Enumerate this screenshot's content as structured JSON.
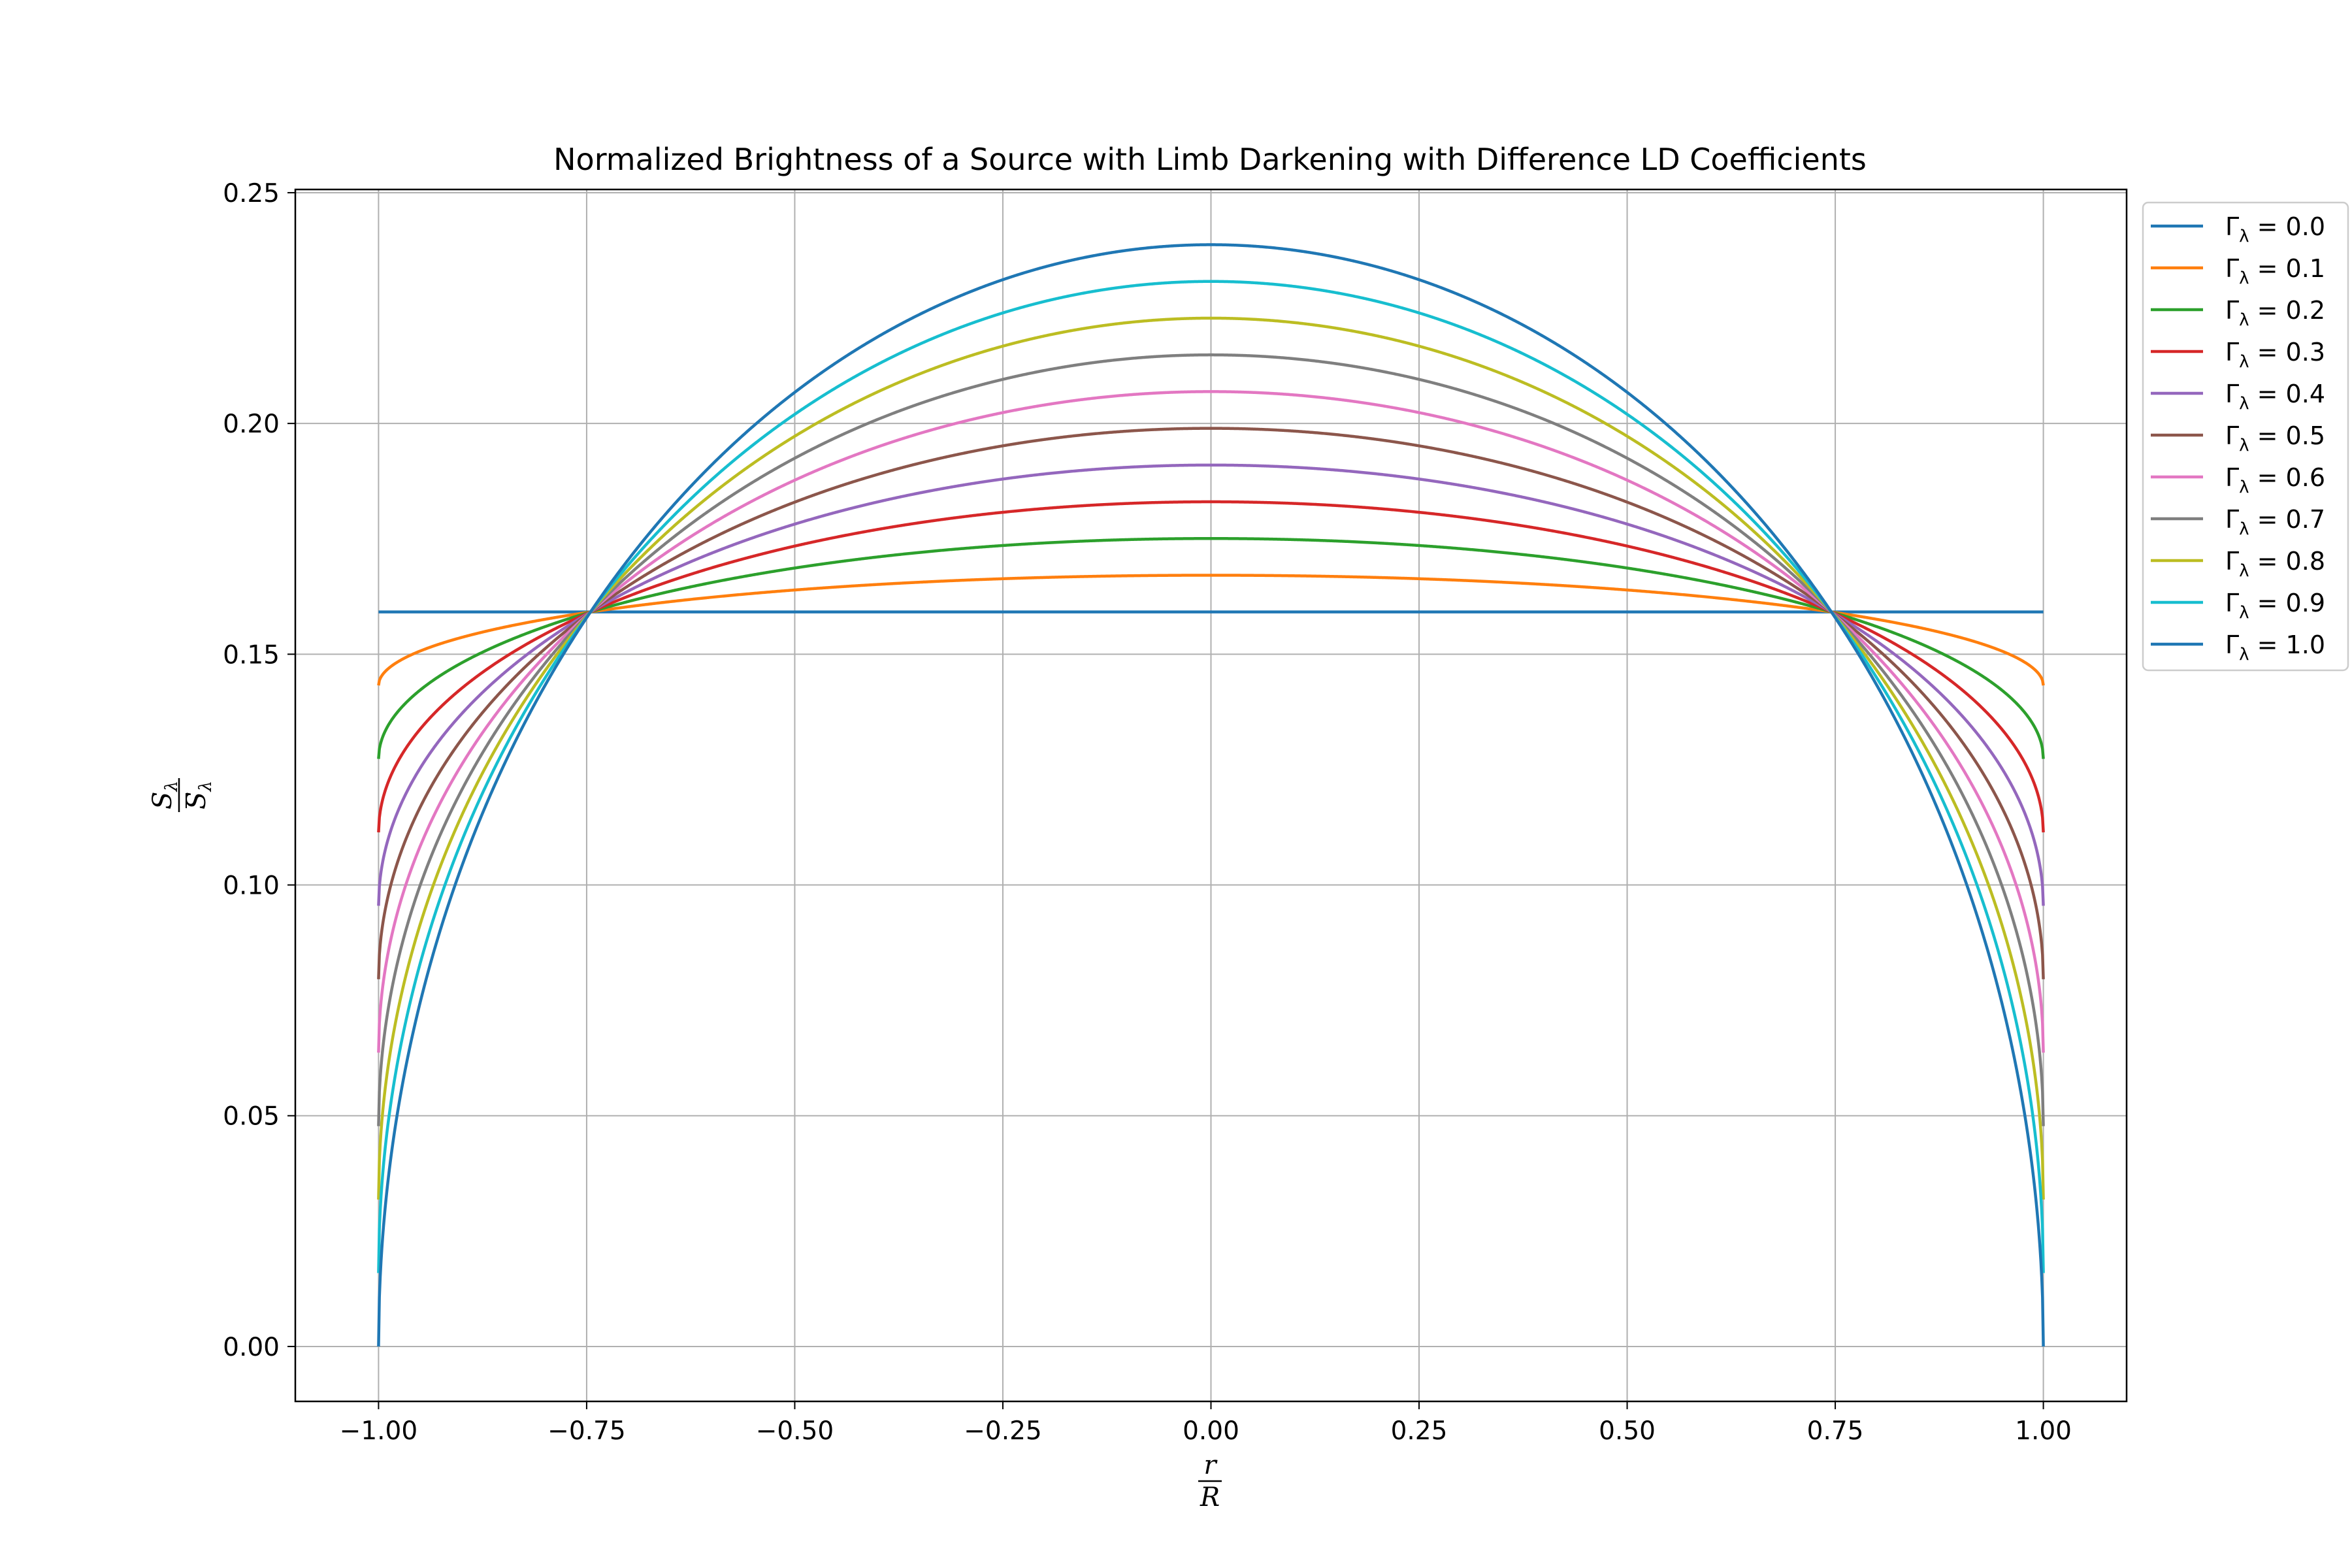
{
  "chart_data": {
    "type": "line",
    "title": "Normalized Brightness of a Source with Limb Darkening with Difference LD Coefficients",
    "xlabel": {
      "numerator": "r",
      "denominator": "R"
    },
    "ylabel": {
      "numerator": "S",
      "numerator_sub": "λ",
      "denominator": "S",
      "denominator_sub": "λ",
      "denominator_overbar": true
    },
    "xlim": [
      -1.1,
      1.1
    ],
    "ylim": [
      -0.0119,
      0.2507
    ],
    "x_ticks": [
      -1.0,
      -0.75,
      -0.5,
      -0.25,
      0.0,
      0.25,
      0.5,
      0.75,
      1.0
    ],
    "x_tick_labels": [
      "−1.00",
      "−0.75",
      "−0.50",
      "−0.25",
      "0.00",
      "0.25",
      "0.50",
      "0.75",
      "1.00"
    ],
    "y_ticks": [
      0.0,
      0.05,
      0.1,
      0.15,
      0.2,
      0.25
    ],
    "y_tick_labels": [
      "0.00",
      "0.05",
      "0.10",
      "0.15",
      "0.20",
      "0.25"
    ],
    "grid": true,
    "legend_position": "outside-right-top",
    "x_range": [
      -1.0,
      1.0
    ],
    "model": "S(x) = (1 - Γ·(1 - 1.5·sqrt(1 - x²))) / (2π)",
    "series": [
      {
        "gamma": 0.0,
        "name_prefix": "Γ",
        "name_sub": "λ",
        "name_value": " = 0.0",
        "color": "#1f77b4",
        "center_value": 0.1592,
        "edge_value": 0.1592
      },
      {
        "gamma": 0.1,
        "name_prefix": "Γ",
        "name_sub": "λ",
        "name_value": " = 0.1",
        "color": "#ff7f0e",
        "center_value": 0.1671,
        "edge_value": 0.1432
      },
      {
        "gamma": 0.2,
        "name_prefix": "Γ",
        "name_sub": "λ",
        "name_value": " = 0.2",
        "color": "#2ca02c",
        "center_value": 0.1751,
        "edge_value": 0.1273
      },
      {
        "gamma": 0.3,
        "name_prefix": "Γ",
        "name_sub": "λ",
        "name_value": " = 0.3",
        "color": "#d62728",
        "center_value": 0.183,
        "edge_value": 0.1114
      },
      {
        "gamma": 0.4,
        "name_prefix": "Γ",
        "name_sub": "λ",
        "name_value": " = 0.4",
        "color": "#9467bd",
        "center_value": 0.191,
        "edge_value": 0.0955
      },
      {
        "gamma": 0.5,
        "name_prefix": "Γ",
        "name_sub": "λ",
        "name_value": " = 0.5",
        "color": "#8c564b",
        "center_value": 0.1989,
        "edge_value": 0.0796
      },
      {
        "gamma": 0.6,
        "name_prefix": "Γ",
        "name_sub": "λ",
        "name_value": " = 0.6",
        "color": "#e377c2",
        "center_value": 0.2069,
        "edge_value": 0.0637
      },
      {
        "gamma": 0.7,
        "name_prefix": "Γ",
        "name_sub": "λ",
        "name_value": " = 0.7",
        "color": "#7f7f7f",
        "center_value": 0.2149,
        "edge_value": 0.0477
      },
      {
        "gamma": 0.8,
        "name_prefix": "Γ",
        "name_sub": "λ",
        "name_value": " = 0.8",
        "color": "#bcbd22",
        "center_value": 0.2228,
        "edge_value": 0.0318
      },
      {
        "gamma": 0.9,
        "name_prefix": "Γ",
        "name_sub": "λ",
        "name_value": " = 0.9",
        "color": "#17becf",
        "center_value": 0.2308,
        "edge_value": 0.0159
      },
      {
        "gamma": 1.0,
        "name_prefix": "Γ",
        "name_sub": "λ",
        "name_value": " = 1.0",
        "color": "#1f77b4",
        "center_value": 0.2387,
        "edge_value": 0.0
      }
    ]
  }
}
